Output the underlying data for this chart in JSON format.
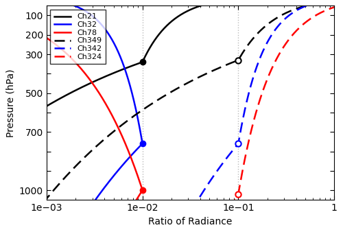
{
  "xlabel": "Ratio of Radiance",
  "ylabel": "Pressure (hPa)",
  "ylim": [
    50,
    1050
  ],
  "xlim": [
    0.001,
    1.0
  ],
  "vlines": [
    0.01,
    0.1
  ],
  "vline_color": "#bbbbbb",
  "legend_entries": [
    "Ch21",
    "Ch32",
    "Ch78",
    "Ch349",
    "Ch342",
    "Ch324"
  ],
  "colors": {
    "Ch21": "#000000",
    "Ch32": "#0000ff",
    "Ch78": "#ff0000",
    "Ch349": "#000000",
    "Ch342": "#0000ff",
    "Ch324": "#ff0000"
  },
  "lwir_dots": {
    "Ch21": [
      0.01,
      340
    ],
    "Ch32": [
      0.01,
      760
    ],
    "Ch78": [
      0.01,
      1000
    ]
  },
  "swir_dots": {
    "Ch349": [
      0.1,
      330
    ],
    "Ch342": [
      0.1,
      760
    ],
    "Ch324": [
      0.1,
      1020
    ]
  },
  "background_color": "#ffffff",
  "linewidth": 1.8
}
